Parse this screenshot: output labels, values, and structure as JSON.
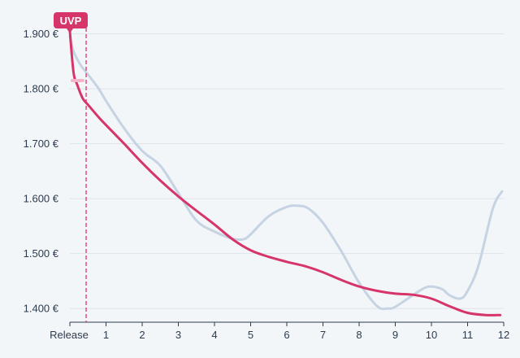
{
  "chart_data": {
    "type": "line",
    "x_tick_labels": [
      "Release",
      "1",
      "2",
      "3",
      "4",
      "5",
      "6",
      "7",
      "8",
      "9",
      "10",
      "11",
      "12"
    ],
    "y_ticks": [
      {
        "value": 1400,
        "label": "1.400 €"
      },
      {
        "value": 1500,
        "label": "1.500 €"
      },
      {
        "value": 1600,
        "label": "1.600 €"
      },
      {
        "value": 1700,
        "label": "1.700 €"
      },
      {
        "value": 1800,
        "label": "1.800 €"
      },
      {
        "value": 1900,
        "label": "1.900 €"
      }
    ],
    "xlim": [
      0,
      12
    ],
    "ylim": [
      1375,
      1935
    ],
    "grid": true,
    "marker": {
      "label": "UVP",
      "x": 0.45,
      "color": "#d63569"
    },
    "series": [
      {
        "color": "#d63569",
        "points": [
          [
            0,
            1905
          ],
          [
            0.1,
            1830
          ],
          [
            0.2,
            1808
          ],
          [
            0.35,
            1783
          ],
          [
            0.5,
            1771
          ],
          [
            0.8,
            1748
          ],
          [
            1,
            1734
          ],
          [
            1.5,
            1700
          ],
          [
            2,
            1665
          ],
          [
            2.5,
            1633
          ],
          [
            3,
            1604
          ],
          [
            3.5,
            1578
          ],
          [
            4,
            1553
          ],
          [
            4.5,
            1526
          ],
          [
            5,
            1506
          ],
          [
            5.5,
            1494
          ],
          [
            6,
            1485
          ],
          [
            6.5,
            1477
          ],
          [
            7,
            1466
          ],
          [
            7.5,
            1452
          ],
          [
            8,
            1440
          ],
          [
            8.5,
            1432
          ],
          [
            9,
            1427
          ],
          [
            9.5,
            1425
          ],
          [
            10,
            1418
          ],
          [
            10.5,
            1404
          ],
          [
            11,
            1392
          ],
          [
            11.5,
            1388
          ],
          [
            11.9,
            1388
          ]
        ]
      },
      {
        "color": "#c6d3e3",
        "points": [
          [
            0,
            1896
          ],
          [
            0.1,
            1868
          ],
          [
            0.3,
            1843
          ],
          [
            0.5,
            1826
          ],
          [
            0.8,
            1800
          ],
          [
            1,
            1778
          ],
          [
            1.5,
            1728
          ],
          [
            2,
            1687
          ],
          [
            2.5,
            1660
          ],
          [
            3,
            1610
          ],
          [
            3.5,
            1560
          ],
          [
            4,
            1540
          ],
          [
            4.5,
            1527
          ],
          [
            4.8,
            1526
          ],
          [
            5,
            1535
          ],
          [
            5.5,
            1568
          ],
          [
            6,
            1585
          ],
          [
            6.3,
            1587
          ],
          [
            6.6,
            1582
          ],
          [
            7,
            1556
          ],
          [
            7.5,
            1505
          ],
          [
            8,
            1447
          ],
          [
            8.5,
            1404
          ],
          [
            8.8,
            1400
          ],
          [
            9,
            1403
          ],
          [
            9.5,
            1425
          ],
          [
            9.8,
            1437
          ],
          [
            10,
            1440
          ],
          [
            10.3,
            1435
          ],
          [
            10.5,
            1424
          ],
          [
            10.8,
            1418
          ],
          [
            11,
            1432
          ],
          [
            11.3,
            1478
          ],
          [
            11.7,
            1582
          ],
          [
            11.95,
            1613
          ]
        ]
      }
    ]
  }
}
